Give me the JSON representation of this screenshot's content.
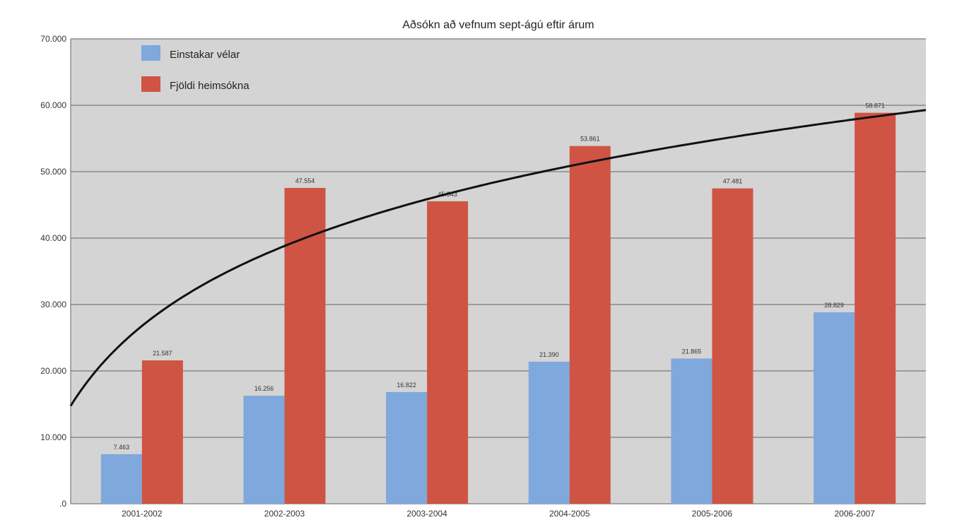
{
  "chart_data": {
    "type": "bar",
    "title": "Aðsókn að vefnum sept-ágú eftir árum",
    "categories": [
      "2001-2002",
      "2002-2003",
      "2003-2004",
      "2004-2005",
      "2005-2006",
      "2006-2007"
    ],
    "series": [
      {
        "name": "Einstakar vélar",
        "color": "#7fa8dc",
        "values": [
          7463,
          16256,
          16822,
          21390,
          21865,
          28829
        ],
        "labels": [
          "7.463",
          "16.256",
          "16.822",
          "21.390",
          "21.865",
          "28.829"
        ]
      },
      {
        "name": "Fjöldi heimsókna",
        "color": "#cf5443",
        "values": [
          21587,
          47554,
          45543,
          53861,
          47481,
          58871
        ],
        "labels": [
          "21.587",
          "47.554",
          "45.543",
          "53.861",
          "47.481",
          "58.871"
        ]
      }
    ],
    "trendline": {
      "type": "logarithmic",
      "color": "#111111"
    },
    "ylim": [
      0,
      70000
    ],
    "yticks": [
      0,
      10000,
      20000,
      30000,
      40000,
      50000,
      60000,
      70000
    ],
    "ytick_labels": [
      ".0",
      "10.000",
      "20.000",
      "30.000",
      "40.000",
      "50.000",
      "60.000",
      "70.000"
    ],
    "grid": true,
    "legend": "top-left",
    "plot_background": "#d4d4d4"
  }
}
